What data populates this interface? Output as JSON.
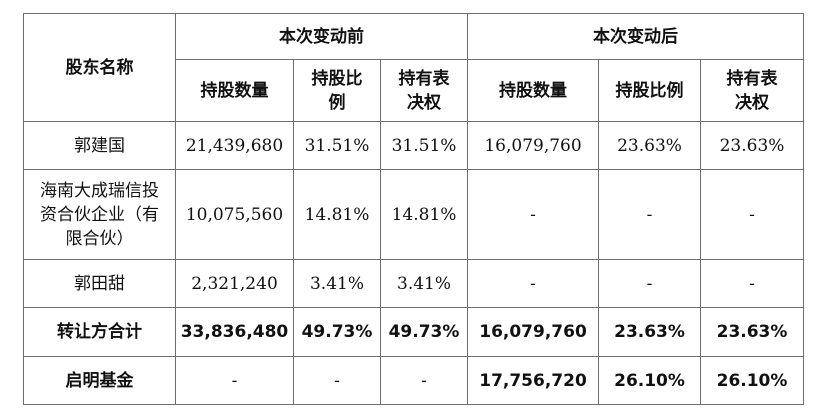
{
  "table": {
    "col_name_header": "股东名称",
    "group_before": "本次变动前",
    "group_after": "本次变动后",
    "sub_headers": [
      "持股数量",
      "持股比例",
      "持有表决权",
      "持股数量",
      "持股比例",
      "持有表决权"
    ],
    "rows": [
      {
        "name": "郭建国",
        "before_shares": "21,439,680",
        "before_ratio": "31.51%",
        "before_vote": "31.51%",
        "after_shares": "16,079,760",
        "after_ratio": "23.63%",
        "after_vote": "23.63%"
      },
      {
        "name": "海南大成瑞信投资合伙企业（有限合伙）",
        "before_shares": "10,075,560",
        "before_ratio": "14.81%",
        "before_vote": "14.81%",
        "after_shares": "-",
        "after_ratio": "-",
        "after_vote": "-"
      },
      {
        "name": "郭田甜",
        "before_shares": "2,321,240",
        "before_ratio": "3.41%",
        "before_vote": "3.41%",
        "after_shares": "-",
        "after_ratio": "-",
        "after_vote": "-"
      },
      {
        "name": "转让方合计",
        "before_shares": "33,836,480",
        "before_ratio": "49.73%",
        "before_vote": "49.73%",
        "after_shares": "16,079,760",
        "after_ratio": "23.63%",
        "after_vote": "23.63%"
      },
      {
        "name": "启明基金",
        "before_shares": "-",
        "before_ratio": "-",
        "before_vote": "-",
        "after_shares": "17,756,720",
        "after_ratio": "26.10%",
        "after_vote": "26.10%"
      }
    ]
  }
}
